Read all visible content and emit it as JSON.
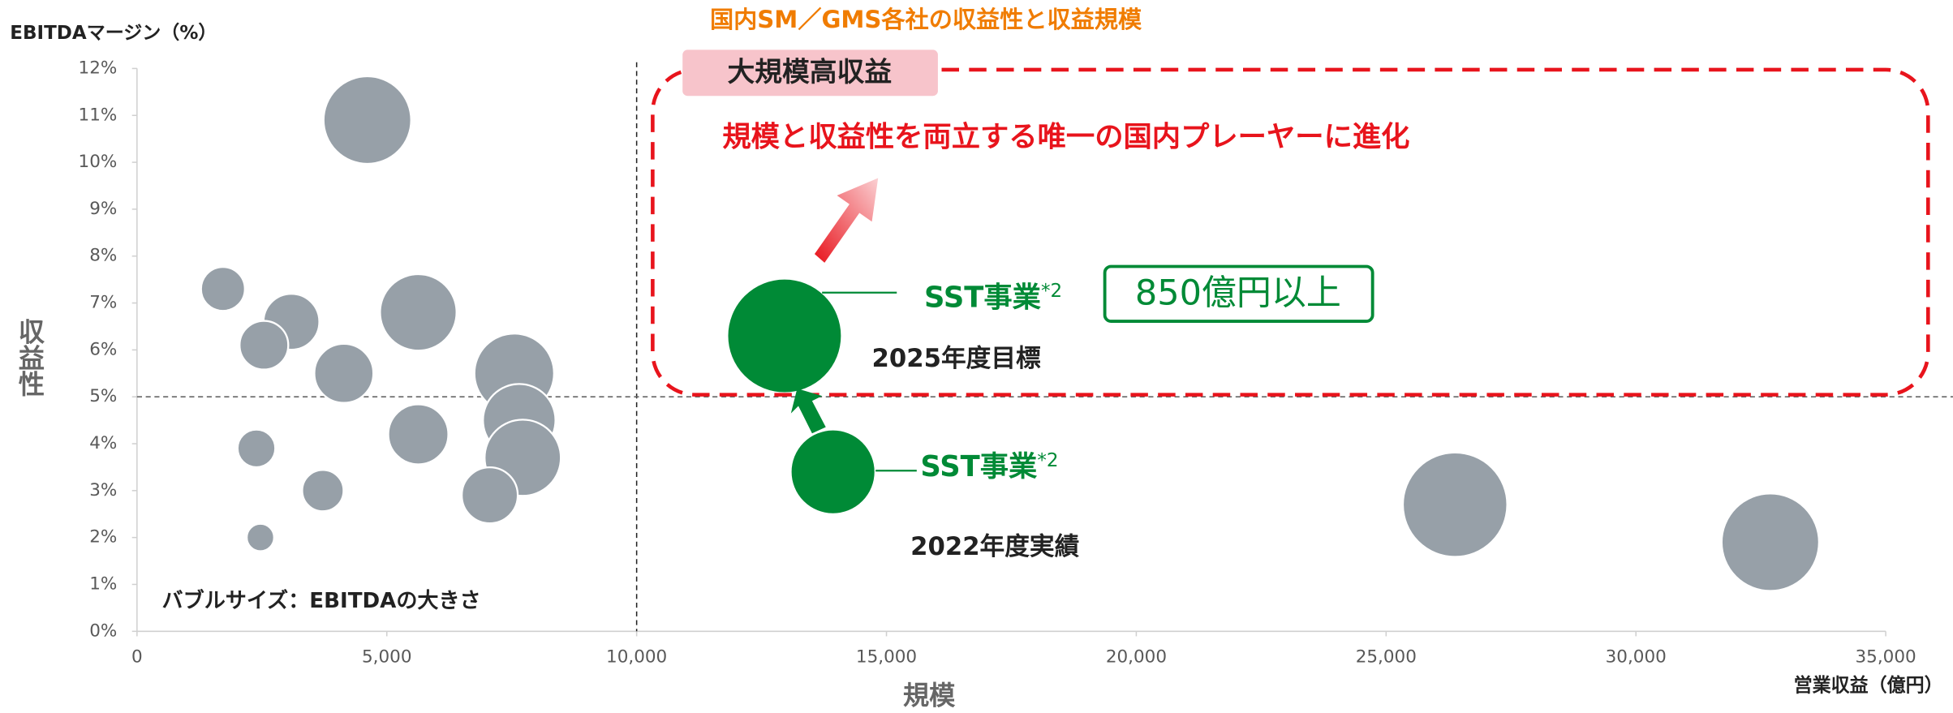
{
  "chart_data": {
    "type": "bubble",
    "title": "国内SM／GMS各社の収益性と収益規模",
    "y_axis_label": "EBITDAマージン（%）",
    "y_axis_title": "収益性",
    "x_axis_title": "規模",
    "x_axis_label": "営業収益（億円）",
    "size_note": "バブルサイズ：EBITDAの大きさ",
    "highlight_box": "大規模高収益",
    "highlight_text": "規模と収益性を両立する唯一の国内プレーヤーに進化",
    "target_label": "850億円以上",
    "xlim": [
      0,
      35000
    ],
    "xticks": [
      0,
      {
        "value": 5000,
        "label": "5,000"
      },
      {
        "value": 10000,
        "label": "10,000"
      },
      {
        "value": 15000,
        "label": "15,000"
      },
      {
        "value": 20000,
        "label": "20,000"
      },
      {
        "value": 25000,
        "label": "25,000"
      },
      {
        "value": 30000,
        "label": "30,000"
      },
      {
        "value": 35000,
        "label": "35,000"
      }
    ],
    "ylim": [
      0,
      12
    ],
    "yticks": [
      {
        "value": 0,
        "label": "0%"
      },
      {
        "value": 1,
        "label": "1%"
      },
      {
        "value": 2,
        "label": "2%"
      },
      {
        "value": 3,
        "label": "3%"
      },
      {
        "value": 4,
        "label": "4%"
      },
      {
        "value": 5,
        "label": "5%"
      },
      {
        "value": 6,
        "label": "6%"
      },
      {
        "value": 7,
        "label": "7%"
      },
      {
        "value": 8,
        "label": "8%"
      },
      {
        "value": 9,
        "label": "9%"
      },
      {
        "value": 10,
        "label": "10%"
      },
      {
        "value": 11,
        "label": "11%"
      },
      {
        "value": 12,
        "label": "12%"
      }
    ],
    "reference_lines": {
      "x": 10000,
      "y": 5
    },
    "series": [
      {
        "color": "#97a0a8",
        "x": [
          4610,
          1720,
          3090,
          2540,
          5630,
          4140,
          7550,
          7650,
          7720,
          5630,
          2390,
          3720,
          7060,
          2470,
          26380,
          32690
        ],
        "values": [
          10.9,
          7.3,
          6.6,
          6.1,
          6.8,
          5.5,
          5.5,
          4.5,
          3.7,
          4.2,
          3.9,
          3.0,
          2.9,
          2.0,
          2.7,
          1.9
        ],
        "sizes": [
          502,
          126,
          204,
          155,
          383,
          228,
          415,
          344,
          380,
          236,
          93,
          112,
          205,
          49,
          713,
          621
        ]
      },
      {
        "color": "#008a36",
        "x": [
          12960,
          13930
        ],
        "values": [
          6.3,
          3.4
        ],
        "sizes": [
          858,
          469
        ],
        "labels": [
          "SST事業",
          "SST事業"
        ],
        "notes": [
          "*2",
          "*2"
        ],
        "point_labels": [
          "2025年度目標",
          "2022年度実績"
        ]
      }
    ]
  }
}
